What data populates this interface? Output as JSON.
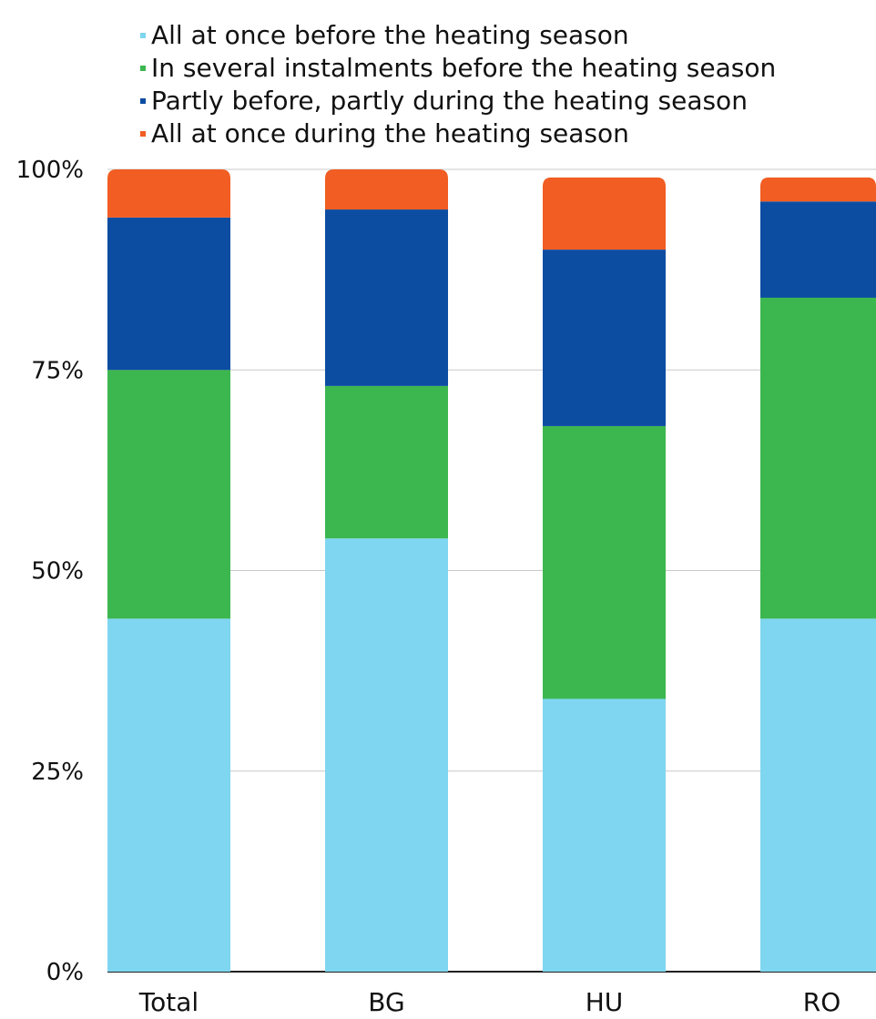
{
  "chart_data": {
    "type": "bar",
    "stacked": true,
    "categories": [
      "Total",
      "BG",
      "HU",
      "RO"
    ],
    "series": [
      {
        "name": "All at once before the heating season",
        "color": "#7fd6f0",
        "values": [
          44,
          54,
          34,
          44
        ]
      },
      {
        "name": "In several instalments before the heating season",
        "color": "#3cb74f",
        "values": [
          31,
          19,
          34,
          40
        ]
      },
      {
        "name": "Partly before, partly during the heating season",
        "color": "#0c4da2",
        "values": [
          19,
          22,
          22,
          12
        ]
      },
      {
        "name": "All at once during the heating season",
        "color": "#f15d22",
        "values": [
          6,
          5,
          9,
          3
        ]
      }
    ],
    "yticks": [
      {
        "value": 0,
        "label": "0%"
      },
      {
        "value": 25,
        "label": "25%"
      },
      {
        "value": 50,
        "label": "50%"
      },
      {
        "value": 75,
        "label": "75%"
      },
      {
        "value": 100,
        "label": "100%"
      }
    ],
    "ylim": [
      0,
      100
    ],
    "grid": true,
    "legend_position": "top-left",
    "title": "",
    "xlabel": "",
    "ylabel": ""
  }
}
